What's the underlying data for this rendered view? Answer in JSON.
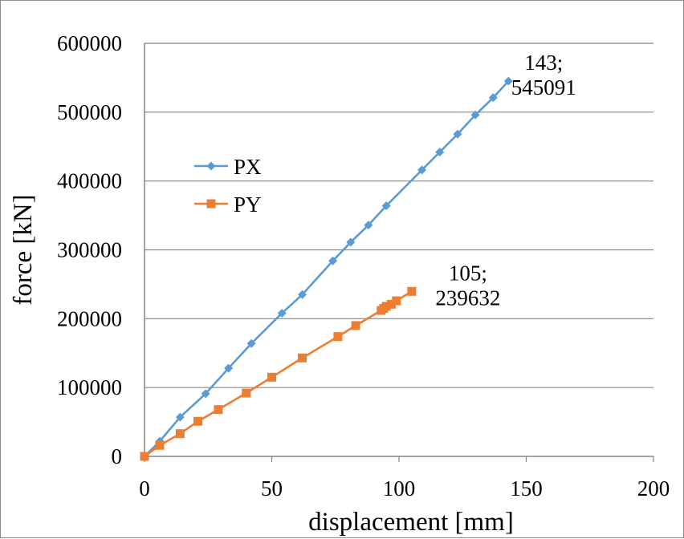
{
  "chart_data": {
    "type": "scatter",
    "xlabel": "displacement [mm]",
    "ylabel": "force [kN]",
    "xlim": [
      0,
      200
    ],
    "ylim": [
      0,
      600000
    ],
    "x_ticks": [
      "0",
      "50",
      "100",
      "150",
      "200"
    ],
    "y_ticks": [
      "0",
      "100000",
      "200000",
      "300000",
      "400000",
      "500000",
      "600000"
    ],
    "grid": "horizontal",
    "legend_position": "left",
    "series": [
      {
        "name": "PX",
        "color": "#5b9bd5",
        "marker": "diamond",
        "x": [
          0,
          6,
          14,
          24,
          33,
          42,
          54,
          62,
          74,
          81,
          88,
          95,
          109,
          116,
          123,
          130,
          137,
          143
        ],
        "y": [
          0,
          22000,
          57000,
          91000,
          128000,
          164000,
          208000,
          235000,
          284000,
          311000,
          336000,
          364000,
          416000,
          442000,
          468000,
          496000,
          521000,
          545091
        ]
      },
      {
        "name": "PY",
        "color": "#ed7d31",
        "marker": "square",
        "x": [
          0,
          6,
          14,
          21,
          29,
          40,
          50,
          62,
          76,
          83,
          93,
          94,
          95,
          97,
          99,
          105
        ],
        "y": [
          0,
          16000,
          33000,
          51000,
          68000,
          92000,
          115000,
          143000,
          174000,
          190000,
          212000,
          215000,
          218000,
          221000,
          226000,
          239632
        ]
      }
    ],
    "annotations": [
      {
        "line1": "143;",
        "line2": "545091",
        "x": 143,
        "y": 545091
      },
      {
        "line1": "105;",
        "line2": "239632",
        "x": 105,
        "y": 239632
      }
    ]
  }
}
